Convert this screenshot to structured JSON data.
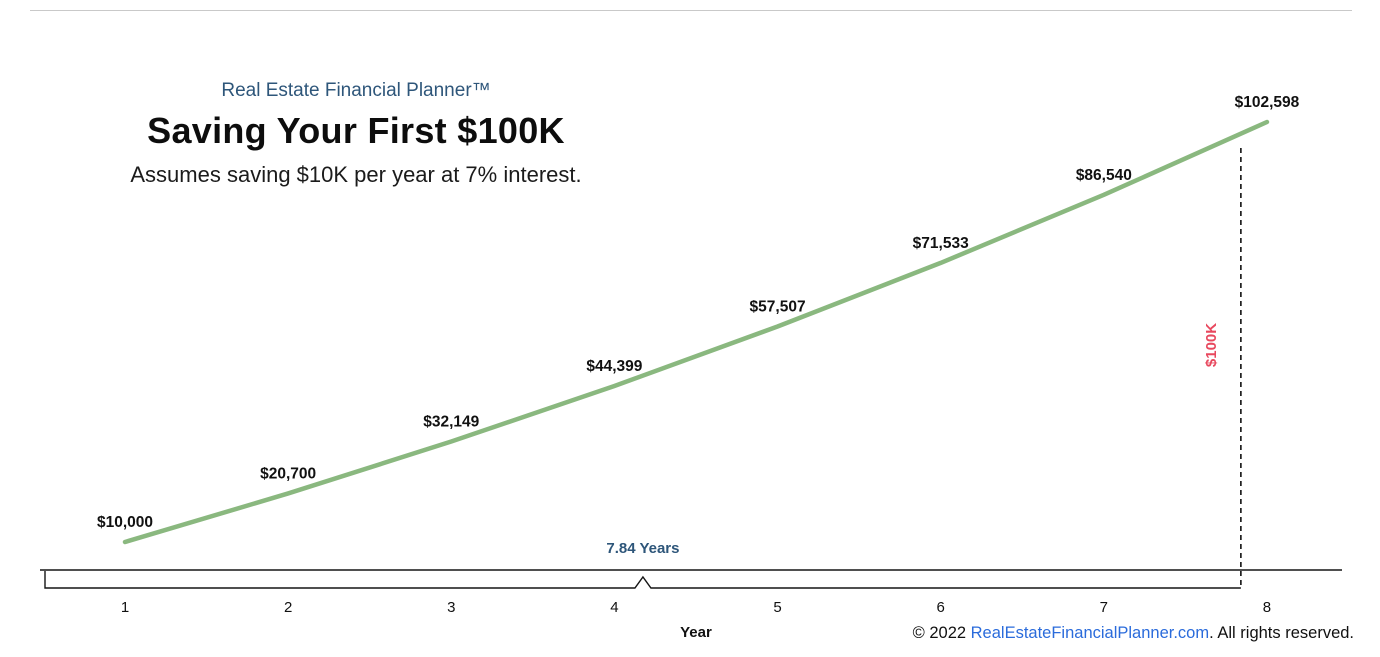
{
  "header": {
    "brand": "Real Estate Financial Planner™",
    "title": "Saving Your First $100K",
    "subtitle": "Assumes saving $10K per year at 7% interest."
  },
  "chart_data": {
    "type": "line",
    "title": "Saving Your First $100K",
    "subtitle": "Assumes saving $10K per year at 7% interest.",
    "x": [
      1,
      2,
      3,
      4,
      5,
      6,
      7,
      8
    ],
    "x_ticks": [
      "1",
      "2",
      "3",
      "4",
      "5",
      "6",
      "7",
      "8"
    ],
    "xlabel": "Year",
    "values": [
      10000,
      20700,
      32149,
      44399,
      57507,
      71533,
      86540,
      102598
    ],
    "point_labels": [
      "$10,000",
      "$20,700",
      "$32,149",
      "$44,399",
      "$57,507",
      "$71,533",
      "$86,540",
      "$102,598"
    ],
    "milestone": {
      "year": 7.84,
      "value_label": "$100K",
      "duration_label": "7.84 Years"
    },
    "line_color": "#8ab87f",
    "milestone_color": "#e8485e",
    "annotation_color": "#2e567a",
    "axis_color": "#151515",
    "grid": false,
    "legend": false
  },
  "footer": {
    "prefix": "© 2022 ",
    "link": "RealEstateFinancialPlanner.com",
    "suffix": ". All rights reserved."
  }
}
